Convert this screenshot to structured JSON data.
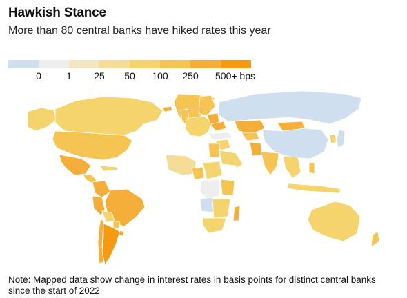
{
  "header": {
    "title": "Hawkish Stance",
    "subtitle": "More than 80 central banks have hiked rates this year"
  },
  "legend": {
    "bins": [
      {
        "color": "#cfdff0"
      },
      {
        "label": "0",
        "color": "#eeeeee"
      },
      {
        "label": "1",
        "color": "#f3e6c3"
      },
      {
        "label": "25",
        "color": "#f5dd98"
      },
      {
        "label": "50",
        "color": "#f5d36d"
      },
      {
        "label": "100",
        "color": "#f6c453"
      },
      {
        "label": "250",
        "color": "#f6ae3a"
      },
      {
        "label": "500+ bps",
        "color": "#f79a0f"
      }
    ]
  },
  "map": {
    "region_colors": {
      "canada": "#f5d36d",
      "usa": "#f6c453",
      "alaska": "#f5d36d",
      "mexico": "#f6ae3a",
      "central_america": "#f6c453",
      "caribbean": "#f5d36d",
      "colombia": "#f6ae3a",
      "venezuela": "#ffffff",
      "brazil": "#f6ae3a",
      "peru": "#f6ae3a",
      "bolivia": "#f5d36d",
      "paraguay": "#f6c453",
      "argentina": "#f79a0f",
      "chile": "#f6ae3a",
      "uruguay": "#f6ae3a",
      "greenland": "#f6c453",
      "iceland": "#f6ae3a",
      "uk": "#f6c453",
      "euro_area": "#f5d36d",
      "scandinavia": "#f6c453",
      "eastern_europe": "#f6ae3a",
      "ukraine": "#f6ae3a",
      "turkey": "#eeeeee",
      "russia": "#cfdff0",
      "kazakhstan": "#f6ae3a",
      "central_asia": "#f6c453",
      "mongolia": "#f6ae3a",
      "china": "#cfdff0",
      "japan": "#cfdff0",
      "korea": "#f5d36d",
      "middle_east": "#f5d36d",
      "iran": "#ffffff",
      "arabia": "#f5d36d",
      "pakistan": "#f6ae3a",
      "india": "#f6c453",
      "southeast_asia": "#f5d36d",
      "indonesia": "#f5d36d",
      "philippines": "#f6c453",
      "north_africa": "#ffffff",
      "algeria": "#ffffff",
      "egypt": "#f6c453",
      "west_africa": "#f5dd98",
      "nigeria": "#f6c453",
      "central_africa": "#f5d36d",
      "east_africa": "#f6c453",
      "ethiopia": "#ffffff",
      "drc": "#eeeeee",
      "angola": "#cfdff0",
      "southern_africa": "#f5d36d",
      "south_africa": "#f5d36d",
      "madagascar": "#f6ae3a",
      "australia": "#f5d36d",
      "new_zealand": "#f6c453"
    }
  },
  "note": "Note: Mapped data show change in interest rates in basis points for distinct central banks since the start of 2022"
}
